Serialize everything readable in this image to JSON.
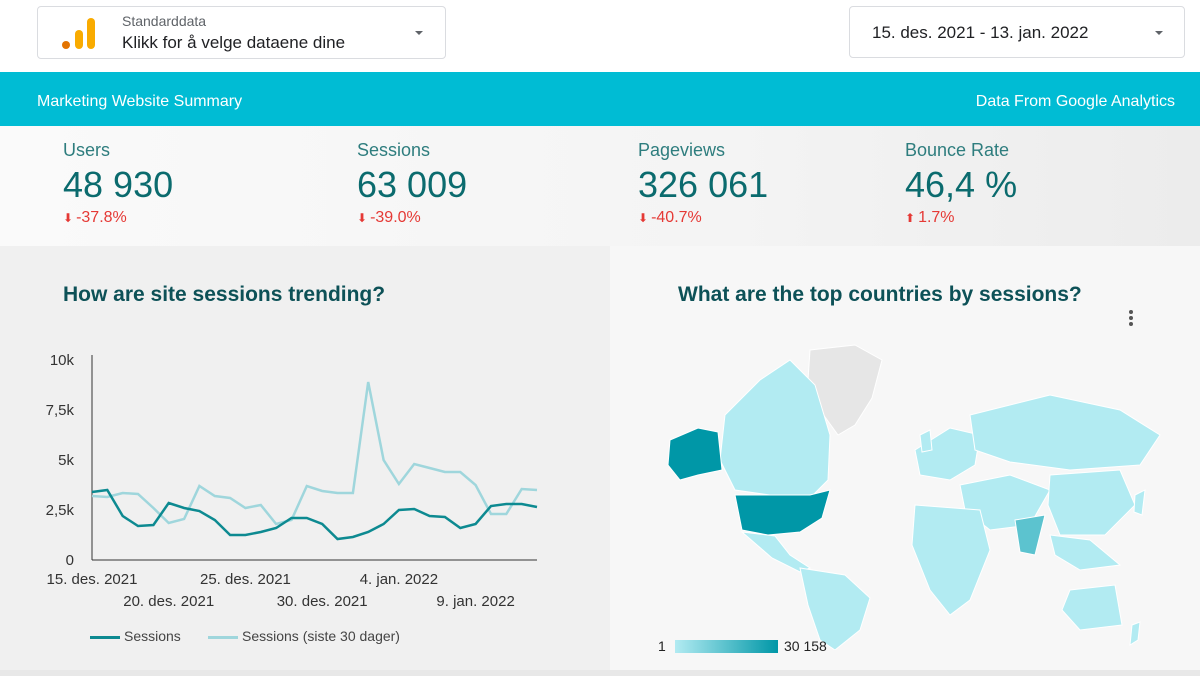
{
  "datasource": {
    "label": "Standarddata",
    "value": "Klikk for å velge dataene dine"
  },
  "date_range": {
    "value": "15. des. 2021 - 13. jan. 2022"
  },
  "header": {
    "left": "Marketing Website Summary",
    "right": "Data From Google Analytics"
  },
  "kpis": [
    {
      "label": "Users",
      "value": "48 930",
      "delta": "-37.8%",
      "direction": "down"
    },
    {
      "label": "Sessions",
      "value": "63 009",
      "delta": "-39.0%",
      "direction": "down"
    },
    {
      "label": "Pageviews",
      "value": "326 061",
      "delta": "-40.7%",
      "direction": "down"
    },
    {
      "label": "Bounce Rate",
      "value": "46,4 %",
      "delta": "1.7%",
      "direction": "up"
    }
  ],
  "colors": {
    "accent": "#00bcd4",
    "series_primary": "#0d8a91",
    "series_compare": "#9fd6dc",
    "negative": "#e53935"
  },
  "trend": {
    "title": "How are site sessions trending?"
  },
  "map": {
    "title": "What are the top countries by sessions?",
    "scale_min": "1",
    "scale_max": "30 158"
  },
  "chart_data": {
    "type": "line",
    "title": "How are site sessions trending?",
    "ylim": [
      0,
      10000
    ],
    "y_ticks": [
      "0",
      "2,5k",
      "5k",
      "7,5k",
      "10k"
    ],
    "x_tick_labels": [
      {
        "label": "15. des. 2021",
        "index": 0,
        "row": 0
      },
      {
        "label": "20. des. 2021",
        "index": 5,
        "row": 1
      },
      {
        "label": "25. des. 2021",
        "index": 10,
        "row": 0
      },
      {
        "label": "30. des. 2021",
        "index": 15,
        "row": 1
      },
      {
        "label": "4. jan. 2022",
        "index": 20,
        "row": 0
      },
      {
        "label": "9. jan. 2022",
        "index": 25,
        "row": 1
      }
    ],
    "legend_position": "bottom",
    "grid": false,
    "series": [
      {
        "name": "Sessions",
        "values": [
          3400,
          3500,
          2200,
          1700,
          1750,
          2850,
          2600,
          2450,
          2000,
          1250,
          1250,
          1400,
          1600,
          2100,
          2100,
          1800,
          1050,
          1150,
          1400,
          1800,
          2500,
          2550,
          2200,
          2150,
          1600,
          1800,
          2700,
          2800,
          2800,
          2650
        ]
      },
      {
        "name": "Sessions (siste 30 dager)",
        "values": [
          3200,
          3150,
          3350,
          3300,
          2600,
          1850,
          2050,
          3700,
          3200,
          3100,
          2600,
          2750,
          1800,
          2000,
          3700,
          3450,
          3350,
          3350,
          8900,
          5000,
          3800,
          4800,
          4600,
          4400,
          4400,
          3750,
          2300,
          2300,
          3550,
          3500
        ]
      }
    ]
  }
}
